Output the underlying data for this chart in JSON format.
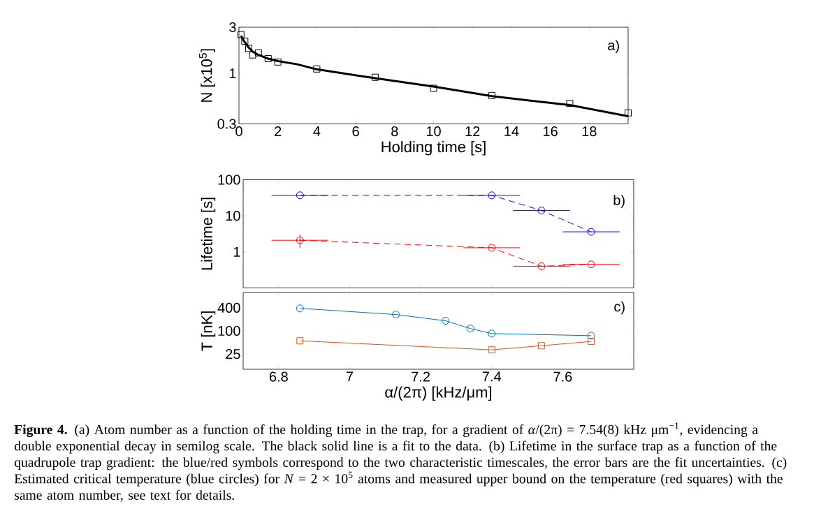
{
  "chart_data": [
    {
      "type": "scatter",
      "xlabel": "Holding time [s]",
      "ylabel": "N [x10$^{5}$]",
      "log": "y",
      "xlim": [
        0,
        20
      ],
      "ylim": [
        0.3,
        3
      ],
      "xticks": [
        0,
        2,
        4,
        6,
        8,
        10,
        12,
        14,
        16,
        18
      ],
      "yticks": [
        0.3,
        1,
        3
      ],
      "annotations": [
        "a)"
      ],
      "series": [
        {
          "marker": "square",
          "color": "#000000",
          "x": [
            0.1,
            0.3,
            0.5,
            0.7,
            1,
            1.5,
            2,
            4,
            7,
            10,
            13,
            17,
            20
          ],
          "values": [
            2.52,
            2.15,
            1.81,
            1.55,
            1.63,
            1.42,
            1.31,
            1.11,
            0.91,
            0.7,
            0.59,
            0.49,
            0.39
          ]
        },
        {
          "type": "line",
          "marker": "none",
          "line_style": "solid",
          "color": "#000000",
          "x": [
            0.1,
            0.3,
            0.5,
            0.7,
            1,
            1.5,
            2,
            3,
            4,
            7,
            10,
            13,
            17,
            20
          ],
          "values": [
            2.45,
            2.1,
            1.85,
            1.68,
            1.55,
            1.42,
            1.34,
            1.24,
            1.1,
            0.89,
            0.73,
            0.58,
            0.47,
            0.36
          ]
        }
      ]
    },
    {
      "type": "line",
      "ylabel": "Lifetime [s]",
      "log": "y",
      "xlim": [
        6.7,
        7.8
      ],
      "ylim": [
        0.1,
        100
      ],
      "xticks": [
        6.8,
        7,
        7.2,
        7.4,
        7.6
      ],
      "yticks": [
        1,
        10,
        100
      ],
      "tick_labels": "y",
      "annotations": [
        "b)"
      ],
      "series": [
        {
          "marker": "circle",
          "line_style": "dashed",
          "color": "#0000ff",
          "x": [
            6.86,
            7.4,
            7.54,
            7.68
          ],
          "values": [
            37,
            37,
            14,
            3.6
          ],
          "xerrors": [
            0.08,
            0.08,
            0.08,
            0.08
          ]
        },
        {
          "marker": "circle",
          "line_style": "dashed",
          "color": "#ff0000",
          "x": [
            6.86,
            7.4,
            7.54,
            7.68
          ],
          "values": [
            2.1,
            1.3,
            0.4,
            0.45
          ],
          "xerrors": [
            0.08,
            0.08,
            0.08,
            0.08
          ],
          "errors": [
            [
              1.3,
              3.0
            ],
            null,
            null,
            null
          ]
        }
      ]
    },
    {
      "type": "line",
      "xlabel": "α/(2π) [kHz/μm]",
      "ylabel": "T [nK]",
      "log": "y",
      "xlim": [
        6.7,
        7.8
      ],
      "ylim": [
        10,
        1000
      ],
      "xticks": [
        6.8,
        7,
        7.2,
        7.4,
        7.6
      ],
      "yticks": [
        25,
        100,
        400
      ],
      "annotations": [
        "c)",
        "**Figure 4.** (a) Atom number as a function of the holding time in the trap, for a gradient of *α*/(2π) = 7.54(8) kHz μm$^{−1}$, evidencing a double exponential decay in semilog scale. The black solid line is a fit to the data. (b) Lifetime in the surface trap as a function of the quadrupole trap gradient: the blue/red symbols correspond to the two characteristic timescales, the error bars are the fit uncertainties. (c) Estimated critical temperature (blue circles) for *N* = 2 × 10$^{5}$ atoms and measured upper bound on the temperature (red squares) with the same atom number, see text for details."
      ],
      "series": [
        {
          "marker": "circle",
          "line_style": "solid",
          "color": "#0072bd",
          "x": [
            6.86,
            7.13,
            7.27,
            7.34,
            7.4,
            7.68
          ],
          "values": [
            386,
            266,
            183,
            115,
            85,
            75
          ]
        },
        {
          "marker": "square",
          "line_style": "solid",
          "color": "#d95319",
          "x": [
            6.86,
            7.4,
            7.54,
            7.68
          ],
          "values": [
            55,
            32,
            41,
            53
          ]
        }
      ]
    }
  ]
}
